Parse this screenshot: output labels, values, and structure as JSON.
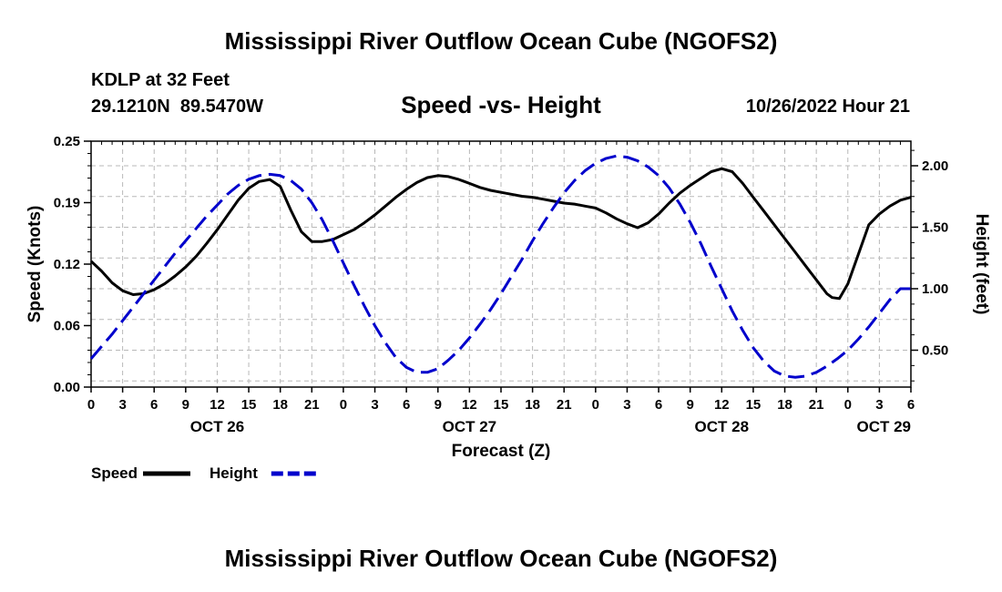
{
  "chart_data": {
    "type": "line",
    "title": "Mississippi River Outflow Ocean Cube (NGOFS2)",
    "footer_title": "Mississippi River Outflow Ocean Cube (NGOFS2)",
    "station": "KDLP at 32 Feet",
    "latitude": "29.1210N",
    "longitude": "89.5470W",
    "subtitle": "Speed -vs- Height",
    "timestamp": "10/26/2022 Hour 21",
    "xlabel": "Forecast (Z)",
    "ylabel_left": "Speed (Knots)",
    "ylabel_right": "Height (feet)",
    "xlim": [
      0,
      78
    ],
    "ylim_left": [
      0,
      0.25
    ],
    "ylim_right": [
      0.2,
      2.2
    ],
    "yticks_left": [
      {
        "value": 0,
        "label": "0.00"
      },
      {
        "value": 0.0625,
        "label": "0.06"
      },
      {
        "value": 0.125,
        "label": "0.12"
      },
      {
        "value": 0.1875,
        "label": "0.19"
      },
      {
        "value": 0.25,
        "label": "0.25"
      }
    ],
    "yticks_right": [
      {
        "value": 0.5,
        "label": "0.50"
      },
      {
        "value": 1.0,
        "label": "1.00"
      },
      {
        "value": 1.5,
        "label": "1.50"
      },
      {
        "value": 2.0,
        "label": "2.00"
      }
    ],
    "xticks": [
      {
        "value": 0,
        "label": "0"
      },
      {
        "value": 3,
        "label": "3"
      },
      {
        "value": 6,
        "label": "6"
      },
      {
        "value": 9,
        "label": "9"
      },
      {
        "value": 12,
        "label": "12"
      },
      {
        "value": 15,
        "label": "15"
      },
      {
        "value": 18,
        "label": "18"
      },
      {
        "value": 21,
        "label": "21"
      },
      {
        "value": 24,
        "label": "0"
      },
      {
        "value": 27,
        "label": "3"
      },
      {
        "value": 30,
        "label": "6"
      },
      {
        "value": 33,
        "label": "9"
      },
      {
        "value": 36,
        "label": "12"
      },
      {
        "value": 39,
        "label": "15"
      },
      {
        "value": 42,
        "label": "18"
      },
      {
        "value": 45,
        "label": "21"
      },
      {
        "value": 48,
        "label": "0"
      },
      {
        "value": 51,
        "label": "3"
      },
      {
        "value": 54,
        "label": "6"
      },
      {
        "value": 57,
        "label": "9"
      },
      {
        "value": 60,
        "label": "12"
      },
      {
        "value": 63,
        "label": "15"
      },
      {
        "value": 66,
        "label": "18"
      },
      {
        "value": 69,
        "label": "21"
      },
      {
        "value": 72,
        "label": "0"
      },
      {
        "value": 75,
        "label": "3"
      },
      {
        "value": 78,
        "label": "6"
      }
    ],
    "day_labels": [
      {
        "value": 12,
        "label": "OCT 26"
      },
      {
        "value": 36,
        "label": "OCT 27"
      },
      {
        "value": 60,
        "label": "OCT 28"
      },
      {
        "value": 78,
        "label": "OCT 29"
      }
    ],
    "grid": true,
    "series": [
      {
        "name": "Speed",
        "axis": "left",
        "color": "#000000",
        "style": "solid",
        "points": [
          [
            0,
            0.128
          ],
          [
            1,
            0.118
          ],
          [
            2,
            0.106
          ],
          [
            3,
            0.098
          ],
          [
            4,
            0.094
          ],
          [
            5,
            0.095
          ],
          [
            6,
            0.099
          ],
          [
            7,
            0.105
          ],
          [
            8,
            0.113
          ],
          [
            9,
            0.122
          ],
          [
            10,
            0.133
          ],
          [
            11,
            0.146
          ],
          [
            12,
            0.16
          ],
          [
            13,
            0.175
          ],
          [
            14,
            0.19
          ],
          [
            15,
            0.202
          ],
          [
            16,
            0.209
          ],
          [
            17,
            0.211
          ],
          [
            18,
            0.204
          ],
          [
            19,
            0.18
          ],
          [
            20,
            0.158
          ],
          [
            21,
            0.148
          ],
          [
            22,
            0.148
          ],
          [
            23,
            0.15
          ],
          [
            24,
            0.155
          ],
          [
            25,
            0.16
          ],
          [
            26,
            0.167
          ],
          [
            27,
            0.175
          ],
          [
            28,
            0.184
          ],
          [
            29,
            0.193
          ],
          [
            30,
            0.201
          ],
          [
            31,
            0.208
          ],
          [
            32,
            0.213
          ],
          [
            33,
            0.215
          ],
          [
            34,
            0.214
          ],
          [
            35,
            0.211
          ],
          [
            36,
            0.207
          ],
          [
            37,
            0.203
          ],
          [
            38,
            0.2
          ],
          [
            39,
            0.198
          ],
          [
            40,
            0.196
          ],
          [
            41,
            0.194
          ],
          [
            42,
            0.193
          ],
          [
            43,
            0.191
          ],
          [
            44,
            0.189
          ],
          [
            45,
            0.187
          ],
          [
            46,
            0.186
          ],
          [
            47,
            0.184
          ],
          [
            48,
            0.182
          ],
          [
            49,
            0.177
          ],
          [
            50,
            0.171
          ],
          [
            51,
            0.166
          ],
          [
            52,
            0.162
          ],
          [
            53,
            0.167
          ],
          [
            54,
            0.176
          ],
          [
            55,
            0.187
          ],
          [
            56,
            0.197
          ],
          [
            57,
            0.205
          ],
          [
            58,
            0.212
          ],
          [
            59,
            0.219
          ],
          [
            60,
            0.222
          ],
          [
            61,
            0.219
          ],
          [
            62,
            0.207
          ],
          [
            63,
            0.193
          ],
          [
            64,
            0.179
          ],
          [
            65,
            0.165
          ],
          [
            66,
            0.151
          ],
          [
            67,
            0.137
          ],
          [
            68,
            0.123
          ],
          [
            69,
            0.109
          ],
          [
            70,
            0.095
          ],
          [
            70.5,
            0.091
          ],
          [
            71.2,
            0.09
          ],
          [
            72,
            0.105
          ],
          [
            73,
            0.135
          ],
          [
            74,
            0.165
          ],
          [
            75,
            0.176
          ],
          [
            76,
            0.184
          ],
          [
            77,
            0.19
          ],
          [
            78,
            0.193
          ]
        ]
      },
      {
        "name": "Height",
        "axis": "right",
        "color": "#0000cc",
        "style": "dashed",
        "points": [
          [
            0,
            0.43
          ],
          [
            1,
            0.53
          ],
          [
            2,
            0.63
          ],
          [
            3,
            0.74
          ],
          [
            4,
            0.85
          ],
          [
            5,
            0.96
          ],
          [
            6,
            1.07
          ],
          [
            7,
            1.18
          ],
          [
            8,
            1.29
          ],
          [
            9,
            1.39
          ],
          [
            10,
            1.49
          ],
          [
            11,
            1.59
          ],
          [
            12,
            1.68
          ],
          [
            13,
            1.77
          ],
          [
            14,
            1.84
          ],
          [
            15,
            1.89
          ],
          [
            16,
            1.92
          ],
          [
            17,
            1.93
          ],
          [
            18,
            1.92
          ],
          [
            19,
            1.88
          ],
          [
            20,
            1.81
          ],
          [
            21,
            1.7
          ],
          [
            22,
            1.56
          ],
          [
            23,
            1.39
          ],
          [
            24,
            1.21
          ],
          [
            25,
            1.03
          ],
          [
            26,
            0.86
          ],
          [
            27,
            0.7
          ],
          [
            28,
            0.56
          ],
          [
            29,
            0.44
          ],
          [
            30,
            0.36
          ],
          [
            31,
            0.32
          ],
          [
            32,
            0.32
          ],
          [
            33,
            0.35
          ],
          [
            34,
            0.42
          ],
          [
            35,
            0.5
          ],
          [
            36,
            0.6
          ],
          [
            37,
            0.71
          ],
          [
            38,
            0.83
          ],
          [
            39,
            0.96
          ],
          [
            40,
            1.1
          ],
          [
            41,
            1.24
          ],
          [
            42,
            1.39
          ],
          [
            43,
            1.53
          ],
          [
            44,
            1.66
          ],
          [
            45,
            1.78
          ],
          [
            46,
            1.88
          ],
          [
            47,
            1.96
          ],
          [
            48,
            2.02
          ],
          [
            49,
            2.06
          ],
          [
            50,
            2.08
          ],
          [
            51,
            2.07
          ],
          [
            52,
            2.04
          ],
          [
            53,
            1.99
          ],
          [
            54,
            1.92
          ],
          [
            55,
            1.82
          ],
          [
            56,
            1.69
          ],
          [
            57,
            1.54
          ],
          [
            58,
            1.37
          ],
          [
            59,
            1.18
          ],
          [
            60,
            1.0
          ],
          [
            61,
            0.82
          ],
          [
            62,
            0.66
          ],
          [
            63,
            0.52
          ],
          [
            64,
            0.41
          ],
          [
            65,
            0.33
          ],
          [
            66,
            0.29
          ],
          [
            67,
            0.28
          ],
          [
            68,
            0.29
          ],
          [
            69,
            0.32
          ],
          [
            70,
            0.37
          ],
          [
            71,
            0.43
          ],
          [
            72,
            0.5
          ],
          [
            73,
            0.59
          ],
          [
            74,
            0.69
          ],
          [
            75,
            0.8
          ],
          [
            76,
            0.91
          ],
          [
            77,
            1.0
          ],
          [
            78,
            1.0
          ]
        ]
      }
    ],
    "legend": [
      {
        "label": "Speed",
        "color": "#000000",
        "style": "solid"
      },
      {
        "label": "Height",
        "color": "#0000cc",
        "style": "dashed"
      }
    ]
  }
}
